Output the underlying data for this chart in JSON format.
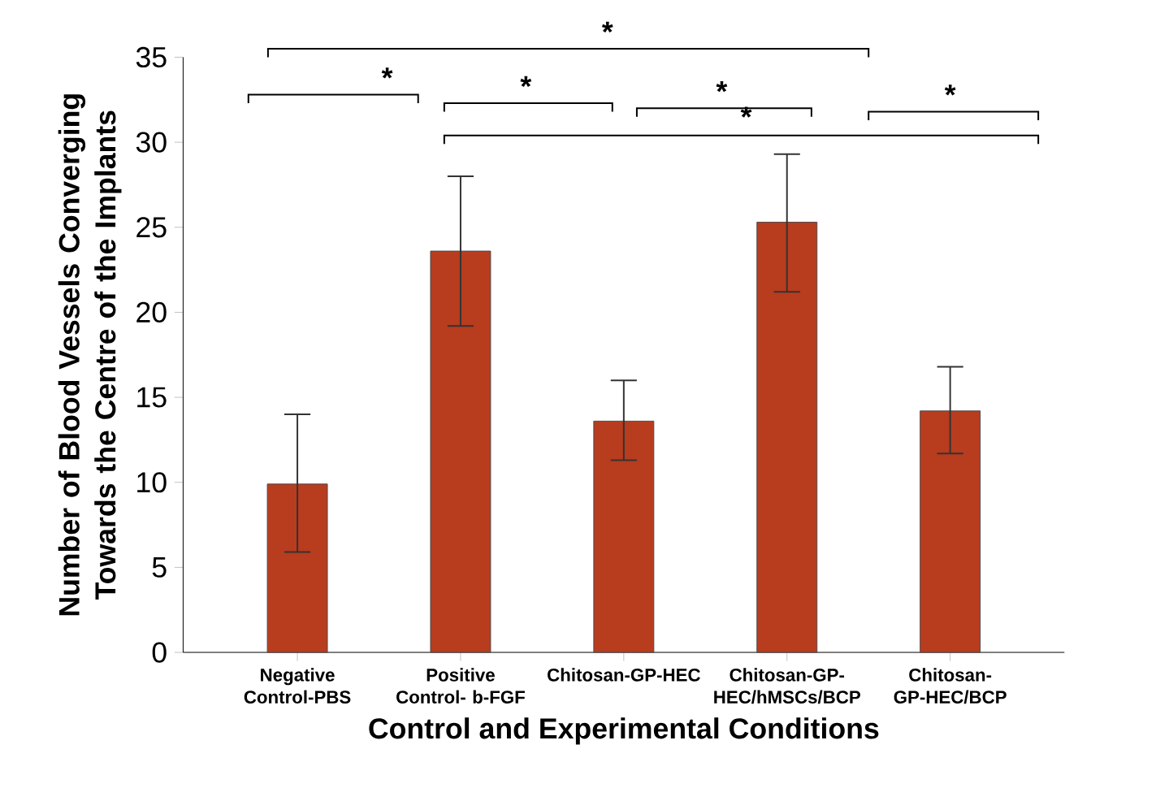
{
  "chart_data": {
    "type": "bar",
    "categories": [
      "Negative Control-PBS",
      "Positive Control- b-FGF",
      "Chitosan-GP-HEC",
      "Chitosan-GP-HEC/hMSCs/BCP",
      "Chitosan-GP-HEC/BCP"
    ],
    "values": [
      9.9,
      23.6,
      13.6,
      25.3,
      14.2
    ],
    "errors": [
      [
        5.9,
        14.0
      ],
      [
        19.2,
        28.0
      ],
      [
        11.3,
        16.0
      ],
      [
        21.2,
        29.3
      ],
      [
        11.7,
        16.8
      ]
    ],
    "color": "#b83c1e",
    "xlabel": "Control and Experimental Conditions",
    "ylabel": "Number of Blood Vessels Converging Towards the Centre of the Implants",
    "ylim": [
      0,
      35
    ],
    "yticks": [
      0,
      5,
      10,
      15,
      20,
      25,
      30,
      35
    ],
    "grid": false,
    "annotations": [
      "*",
      "*",
      "*",
      "*",
      "*",
      "*"
    ]
  }
}
